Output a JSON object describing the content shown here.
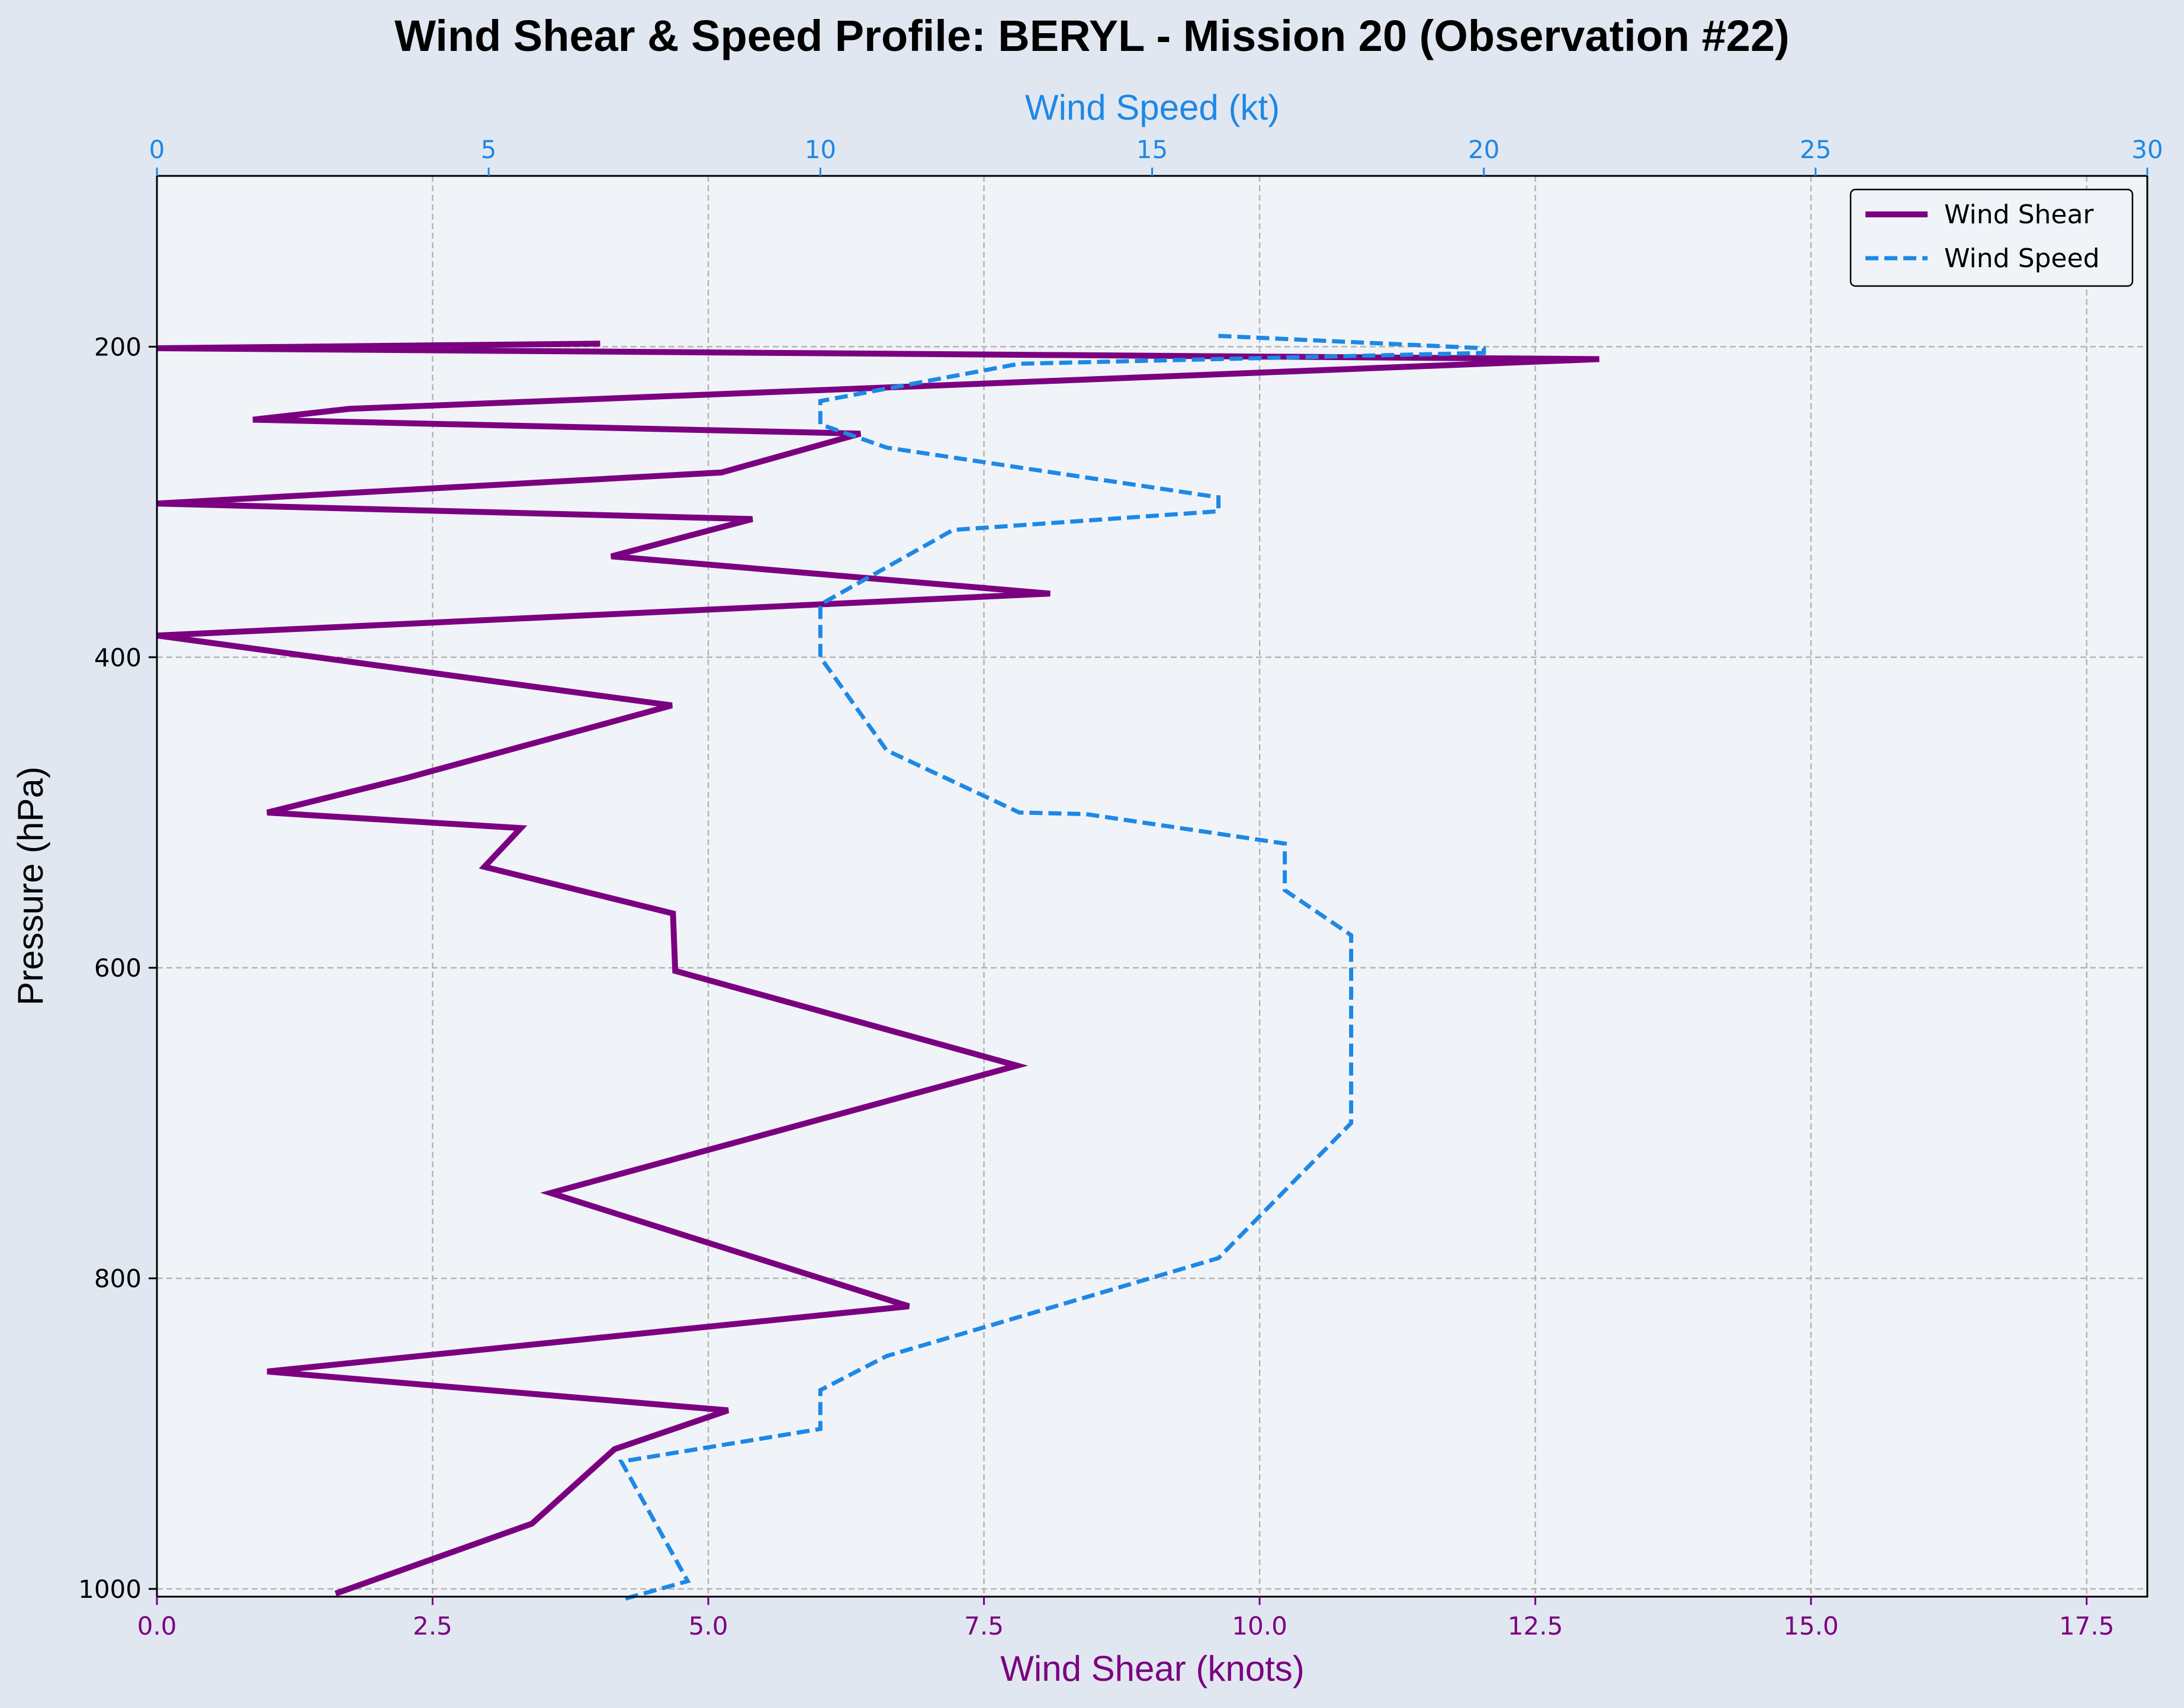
{
  "chart_data": {
    "type": "line",
    "title": "Wind Shear & Speed Profile: BERYL - Mission 20 (Observation #22)",
    "xlabel": "Wind Shear (knots)",
    "x2label": "Wind Speed (kt)",
    "ylabel": "Pressure (hPa)",
    "xlim": [
      0,
      18.05
    ],
    "x2lim": [
      0,
      30
    ],
    "ylim": [
      1005,
      90
    ],
    "y_inverted": true,
    "xticks": [
      "0.0",
      "2.5",
      "5.0",
      "7.5",
      "10.0",
      "12.5",
      "15.0",
      "17.5"
    ],
    "xtick_values": [
      0,
      2.5,
      5,
      7.5,
      10,
      12.5,
      15,
      17.5
    ],
    "x2ticks": [
      "0",
      "5",
      "10",
      "15",
      "20",
      "25",
      "30"
    ],
    "x2tick_values": [
      0,
      5,
      10,
      15,
      20,
      25,
      30
    ],
    "yticks": [
      "200",
      "400",
      "600",
      "800",
      "1000"
    ],
    "ytick_values": [
      200,
      400,
      600,
      800,
      1000
    ],
    "grid": true,
    "legend_position": "top-right",
    "colors": {
      "shear": "#7b0080",
      "speed": "#1e88e5",
      "plot_bg": "#f0f4f9",
      "fig_bg": "#e1e7f1",
      "grid": "#b4b4b4"
    },
    "series": [
      {
        "name": "Wind Shear",
        "axis": "bottom",
        "style": "solid",
        "points": [
          [
            4.02,
            198
          ],
          [
            0.0,
            201
          ],
          [
            13.08,
            208
          ],
          [
            1.75,
            240
          ],
          [
            0.87,
            247
          ],
          [
            6.38,
            256
          ],
          [
            5.12,
            281
          ],
          [
            0.0,
            301
          ],
          [
            5.4,
            311
          ],
          [
            4.12,
            335
          ],
          [
            8.1,
            359
          ],
          [
            0.0,
            386
          ],
          [
            4.67,
            431
          ],
          [
            2.25,
            478
          ],
          [
            1.0,
            500
          ],
          [
            3.3,
            510
          ],
          [
            2.97,
            535
          ],
          [
            4.68,
            565
          ],
          [
            4.7,
            602
          ],
          [
            7.8,
            663
          ],
          [
            3.57,
            745
          ],
          [
            6.82,
            818
          ],
          [
            1.0,
            860
          ],
          [
            5.18,
            885
          ],
          [
            4.15,
            910
          ],
          [
            3.4,
            958
          ],
          [
            1.62,
            1003
          ]
        ]
      },
      {
        "name": "Wind Speed",
        "axis": "top",
        "style": "dashed",
        "points": [
          [
            16.0,
            193
          ],
          [
            20.0,
            201
          ],
          [
            20.0,
            204
          ],
          [
            13.0,
            211
          ],
          [
            10.0,
            235
          ],
          [
            10.0,
            250
          ],
          [
            11.0,
            265
          ],
          [
            16.0,
            297
          ],
          [
            16.0,
            306
          ],
          [
            12.0,
            318
          ],
          [
            10.0,
            366
          ],
          [
            10.0,
            400
          ],
          [
            11.0,
            460
          ],
          [
            13.0,
            500
          ],
          [
            14.0,
            501
          ],
          [
            17.0,
            520
          ],
          [
            17.0,
            550
          ],
          [
            18.0,
            579
          ],
          [
            18.0,
            700
          ],
          [
            16.0,
            787
          ],
          [
            11.0,
            850
          ],
          [
            10.0,
            872
          ],
          [
            10.0,
            897
          ],
          [
            7.0,
            918
          ],
          [
            8.0,
            995
          ],
          [
            7.0,
            1007
          ]
        ]
      }
    ]
  }
}
